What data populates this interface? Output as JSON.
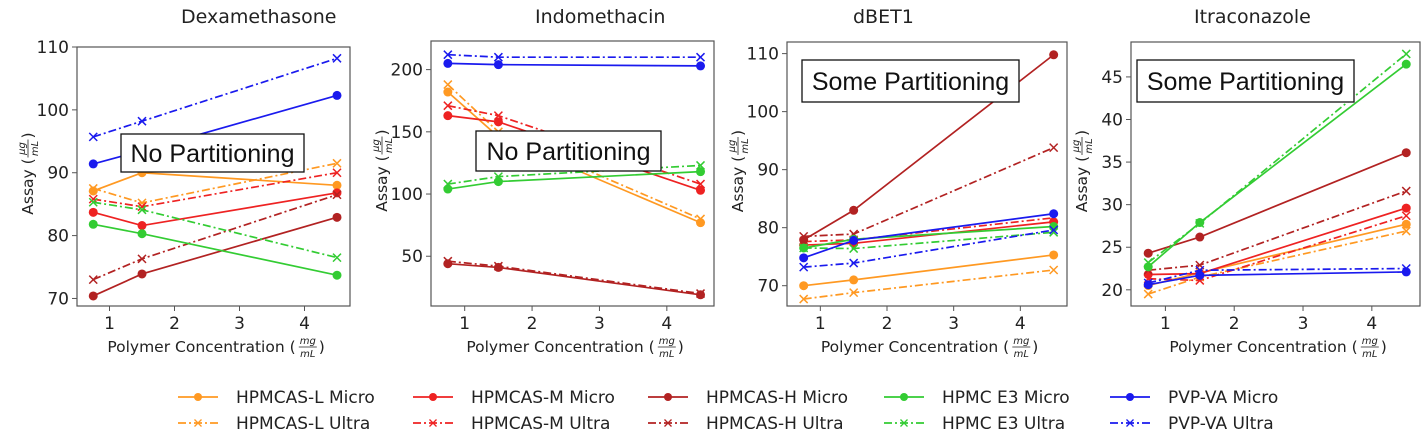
{
  "legend": {
    "placement": "bottom-center",
    "entries": [
      {
        "label": "HPMCAS-L Micro",
        "color": "#ff9922",
        "style": "solid",
        "marker": "circle"
      },
      {
        "label": "HPMCAS-L Ultra",
        "color": "#ff9922",
        "style": "dashdot",
        "marker": "x"
      },
      {
        "label": "HPMCAS-M Micro",
        "color": "#ee2222",
        "style": "solid",
        "marker": "circle"
      },
      {
        "label": "HPMCAS-M Ultra",
        "color": "#ee2222",
        "style": "dashdot",
        "marker": "x"
      },
      {
        "label": "HPMCAS-H Micro",
        "color": "#b22222",
        "style": "solid",
        "marker": "circle"
      },
      {
        "label": "HPMCAS-H Ultra",
        "color": "#b22222",
        "style": "dashdot",
        "marker": "x"
      },
      {
        "label": "HPMC E3 Micro",
        "color": "#33cc33",
        "style": "solid",
        "marker": "circle"
      },
      {
        "label": "HPMC E3 Ultra",
        "color": "#33cc33",
        "style": "dashdot",
        "marker": "x"
      },
      {
        "label": "PVP-VA Micro",
        "color": "#1a1aee",
        "style": "solid",
        "marker": "circle"
      },
      {
        "label": "PVP-VA Ultra",
        "color": "#1a1aee",
        "style": "dashdot",
        "marker": "x"
      }
    ]
  },
  "chart_data": [
    {
      "type": "line",
      "title": "Dexamethasone",
      "xlabel": "Polymer Concentration",
      "xlabel_unit": {
        "num": "mg",
        "den": "mL"
      },
      "ylabel": "Assay",
      "ylabel_unit": {
        "num": "μg",
        "den": "mL"
      },
      "annotation": "No Partitioning",
      "x": [
        0.75,
        1.5,
        4.5
      ],
      "xlim": [
        0.5,
        4.7
      ],
      "ylim": [
        68.8,
        110
      ],
      "xticks": [
        1,
        2,
        3,
        4
      ],
      "yticks": [
        70,
        80,
        90,
        100,
        110
      ],
      "grid": false,
      "series": [
        {
          "name": "HPMCAS-L Micro",
          "values": [
            87.1,
            90.0,
            88.0
          ]
        },
        {
          "name": "HPMCAS-L Ultra",
          "values": [
            87.5,
            85.2,
            91.5
          ]
        },
        {
          "name": "HPMCAS-M Micro",
          "values": [
            83.7,
            81.6,
            86.8
          ]
        },
        {
          "name": "HPMCAS-M Ultra",
          "values": [
            85.8,
            84.6,
            90.0
          ]
        },
        {
          "name": "HPMCAS-H Micro",
          "values": [
            70.4,
            73.9,
            82.9
          ]
        },
        {
          "name": "HPMCAS-H Ultra",
          "values": [
            73.0,
            76.3,
            86.5
          ]
        },
        {
          "name": "HPMC E3 Micro",
          "values": [
            81.8,
            80.3,
            73.7
          ]
        },
        {
          "name": "HPMC E3 Ultra",
          "values": [
            85.3,
            84.1,
            76.5
          ]
        },
        {
          "name": "PVP-VA Micro",
          "values": [
            91.4,
            93.5,
            102.3
          ]
        },
        {
          "name": "PVP-VA Ultra",
          "values": [
            95.7,
            98.2,
            108.2
          ]
        }
      ]
    },
    {
      "type": "line",
      "title": "Indomethacin",
      "xlabel": "Polymer Concentration",
      "xlabel_unit": {
        "num": "mg",
        "den": "mL"
      },
      "ylabel": "Assay",
      "ylabel_unit": {
        "num": "μg",
        "den": "mL"
      },
      "annotation": "No Partitioning",
      "x": [
        0.75,
        1.5,
        4.5
      ],
      "xlim": [
        0.5,
        4.7
      ],
      "ylim": [
        10,
        223
      ],
      "xticks": [
        1,
        2,
        3,
        4
      ],
      "yticks": [
        50,
        100,
        150,
        200
      ],
      "grid": false,
      "series": [
        {
          "name": "HPMCAS-L Micro",
          "values": [
            182,
            146,
            77
          ]
        },
        {
          "name": "HPMCAS-L Ultra",
          "values": [
            188,
            150,
            80
          ]
        },
        {
          "name": "HPMCAS-M Micro",
          "values": [
            163,
            158,
            103
          ]
        },
        {
          "name": "HPMCAS-M Ultra",
          "values": [
            171,
            163,
            108
          ]
        },
        {
          "name": "HPMCAS-H Micro",
          "values": [
            44,
            41,
            19
          ]
        },
        {
          "name": "HPMCAS-H Ultra",
          "values": [
            46,
            42,
            20
          ]
        },
        {
          "name": "HPMC E3 Micro",
          "values": [
            104,
            110,
            118
          ]
        },
        {
          "name": "HPMC E3 Ultra",
          "values": [
            108,
            114,
            123
          ]
        },
        {
          "name": "PVP-VA Micro",
          "values": [
            205,
            204,
            203
          ]
        },
        {
          "name": "PVP-VA Ultra",
          "values": [
            212,
            210,
            210
          ]
        }
      ]
    },
    {
      "type": "line",
      "title": "dBET1",
      "xlabel": "Polymer Concentration",
      "xlabel_unit": {
        "num": "mg",
        "den": "mL"
      },
      "ylabel": "Assay",
      "ylabel_unit": {
        "num": "μg",
        "den": "mL"
      },
      "annotation": "Some Partitioning",
      "x": [
        0.75,
        1.5,
        4.5
      ],
      "xlim": [
        0.5,
        4.7
      ],
      "ylim": [
        66.5,
        112
      ],
      "xticks": [
        1,
        2,
        3,
        4
      ],
      "yticks": [
        70,
        80,
        90,
        100,
        110
      ],
      "grid": false,
      "series": [
        {
          "name": "HPMCAS-L Micro",
          "values": [
            70.0,
            71.0,
            75.3
          ]
        },
        {
          "name": "HPMCAS-L Ultra",
          "values": [
            67.7,
            68.8,
            72.7
          ]
        },
        {
          "name": "HPMCAS-M Micro",
          "values": [
            77.0,
            77.3,
            81.0
          ]
        },
        {
          "name": "HPMCAS-M Ultra",
          "values": [
            77.6,
            77.9,
            81.7
          ]
        },
        {
          "name": "HPMCAS-H Micro",
          "values": [
            77.9,
            83.0,
            109.8
          ]
        },
        {
          "name": "HPMCAS-H Ultra",
          "values": [
            78.5,
            78.9,
            93.8
          ]
        },
        {
          "name": "HPMC E3 Micro",
          "values": [
            76.5,
            78.0,
            80.2
          ]
        },
        {
          "name": "HPMC E3 Ultra",
          "values": [
            76.5,
            76.4,
            79.2
          ]
        },
        {
          "name": "PVP-VA Micro",
          "values": [
            74.8,
            77.8,
            82.4
          ]
        },
        {
          "name": "PVP-VA Ultra",
          "values": [
            73.2,
            73.9,
            79.6
          ]
        }
      ]
    },
    {
      "type": "line",
      "title": "Itraconazole",
      "xlabel": "Polymer Concentration",
      "xlabel_unit": {
        "num": "mg",
        "den": "mL"
      },
      "ylabel": "Assay",
      "ylabel_unit": {
        "num": "μg",
        "den": "mL"
      },
      "annotation": "Some Partitioning",
      "x": [
        0.75,
        1.5,
        4.5
      ],
      "xlim": [
        0.5,
        4.7
      ],
      "ylim": [
        18.1,
        49.1
      ],
      "xticks": [
        1,
        2,
        3,
        4
      ],
      "yticks": [
        20,
        25,
        30,
        35,
        40,
        45
      ],
      "grid": false,
      "series": [
        {
          "name": "HPMCAS-L Micro",
          "values": [
            20.5,
            22.0,
            27.7
          ]
        },
        {
          "name": "HPMCAS-L Ultra",
          "values": [
            19.5,
            21.5,
            26.9
          ]
        },
        {
          "name": "HPMCAS-M Micro",
          "values": [
            21.8,
            21.9,
            29.6
          ]
        },
        {
          "name": "HPMCAS-M Ultra",
          "values": [
            21.3,
            21.1,
            28.7
          ]
        },
        {
          "name": "HPMCAS-H Micro",
          "values": [
            24.3,
            26.2,
            36.1
          ]
        },
        {
          "name": "HPMCAS-H Ultra",
          "values": [
            22.3,
            22.9,
            31.6
          ]
        },
        {
          "name": "HPMC E3 Micro",
          "values": [
            22.7,
            27.9,
            46.5
          ]
        },
        {
          "name": "HPMC E3 Ultra",
          "values": [
            23.2,
            27.8,
            47.7
          ]
        },
        {
          "name": "PVP-VA Micro",
          "values": [
            20.6,
            21.7,
            22.1
          ]
        },
        {
          "name": "PVP-VA Ultra",
          "values": [
            20.8,
            22.3,
            22.5
          ]
        }
      ]
    }
  ]
}
